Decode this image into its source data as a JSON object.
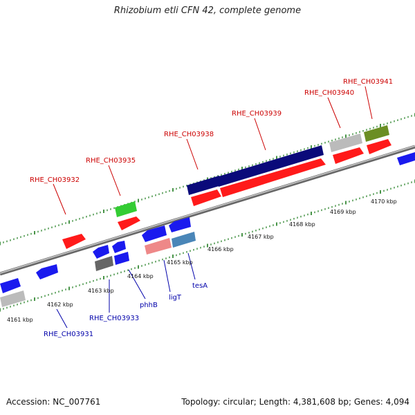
{
  "title": "Rhizobium etli CFN 42, complete genome",
  "footer": {
    "accession": "Accession: NC_007761",
    "stats": "Topology: circular; Length: 4,381,608 bp; Genes: 4,094"
  },
  "scale_labels": [
    "4161 kbp",
    "4162 kbp",
    "4163 kbp",
    "4164 kbp",
    "4165 kbp",
    "4166 kbp",
    "4167 kbp",
    "4168 kbp",
    "4169 kbp",
    "4170 kbp"
  ],
  "gene_labels_top": [
    "RHE_CH03932",
    "RHE_CH03935",
    "RHE_CH03938",
    "RHE_CH03939",
    "RHE_CH03940",
    "RHE_CH03941"
  ],
  "gene_labels_bottom": [
    "RHE_CH03931",
    "RHE_CH03933",
    "phhB",
    "ligT",
    "tesA"
  ],
  "colors": {
    "top_label": "#cc0000",
    "bottom_label": "#0000aa",
    "backbone": "#888888",
    "tick": "#1a7a1a",
    "red": "#ff1a1a",
    "blue": "#1a1aee",
    "navy": "#0a0a7a",
    "green": "#33cc33",
    "olive": "#6b8e23",
    "gray": "#bbbbbb",
    "dark_gray": "#666666",
    "pink": "#ee8888",
    "steel": "#4a86b8"
  }
}
